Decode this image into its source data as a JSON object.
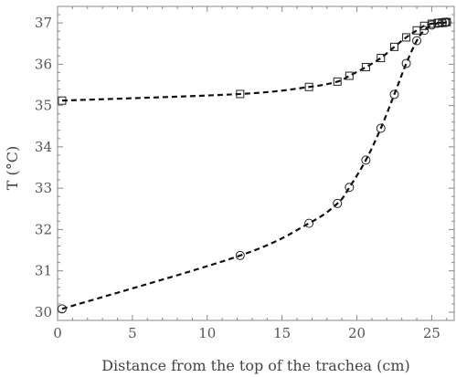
{
  "chart_data": {
    "type": "line",
    "xlabel": "Distance from the top of the trachea (cm)",
    "ylabel": "T (°C)",
    "xlim": [
      0,
      26.5
    ],
    "ylim": [
      29.8,
      37.4
    ],
    "xticks": [
      0,
      5,
      10,
      15,
      20,
      25
    ],
    "yticks": [
      30,
      31,
      32,
      33,
      34,
      35,
      36,
      37
    ],
    "grid": false,
    "line_style": "dashed",
    "line_color": "#111111",
    "frame_color": "#888888",
    "series": [
      {
        "marker": "square",
        "x": [
          0.3,
          12.2,
          16.8,
          18.7,
          19.5,
          20.6,
          21.6,
          22.5,
          23.3,
          24.0,
          24.5,
          25.0,
          25.4,
          25.7,
          25.9,
          26.0
        ],
        "y": [
          35.12,
          35.28,
          35.45,
          35.58,
          35.72,
          35.93,
          36.15,
          36.42,
          36.65,
          36.82,
          36.93,
          36.98,
          37.0,
          37.01,
          37.02,
          37.02
        ]
      },
      {
        "marker": "circle",
        "x": [
          0.3,
          12.2,
          16.8,
          18.7,
          19.5,
          20.6,
          21.6,
          22.5,
          23.3,
          24.0,
          24.5,
          25.0,
          25.4,
          25.7,
          25.9,
          26.0
        ],
        "y": [
          30.08,
          31.37,
          32.15,
          32.63,
          33.02,
          33.68,
          34.45,
          35.27,
          36.02,
          36.57,
          36.82,
          36.95,
          36.99,
          37.0,
          37.01,
          37.02
        ]
      }
    ]
  }
}
